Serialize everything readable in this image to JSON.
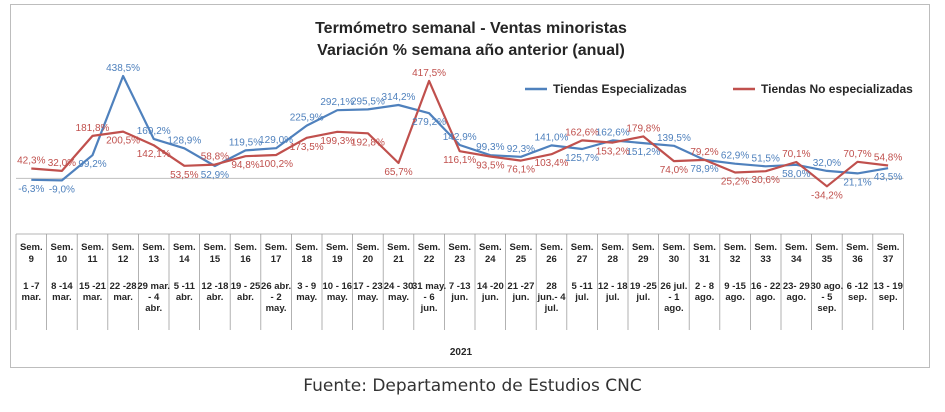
{
  "chart_data": {
    "type": "line",
    "title": "Termómetro semanal - Ventas minoristas",
    "subtitle": "Variación % semana año anterior (anual)",
    "year_label": "2021",
    "legend_position": "top-right",
    "grid": false,
    "ylim": [
      -50,
      460
    ],
    "categories": [
      {
        "week": "Sem. 9",
        "range": "1 -7 mar."
      },
      {
        "week": "Sem. 10",
        "range": "8 -14 mar."
      },
      {
        "week": "Sem. 11",
        "range": "15 -21 mar."
      },
      {
        "week": "Sem. 12",
        "range": "22 -28 mar."
      },
      {
        "week": "Sem. 13",
        "range": "29 mar. - 4 abr."
      },
      {
        "week": "Sem. 14",
        "range": "5 -11 abr."
      },
      {
        "week": "Sem. 15",
        "range": "12 -18 abr."
      },
      {
        "week": "Sem. 16",
        "range": "19 - 25 abr."
      },
      {
        "week": "Sem. 17",
        "range": "26 abr. - 2 may."
      },
      {
        "week": "Sem. 18",
        "range": "3 - 9 may."
      },
      {
        "week": "Sem. 19",
        "range": "10 - 16 may."
      },
      {
        "week": "Sem. 20",
        "range": "17 - 23 may."
      },
      {
        "week": "Sem. 21",
        "range": "24 - 30 may."
      },
      {
        "week": "Sem. 22",
        "range": "31 may. - 6 jun."
      },
      {
        "week": "Sem. 23",
        "range": "7 -13 jun."
      },
      {
        "week": "Sem. 24",
        "range": "14 -20 jun."
      },
      {
        "week": "Sem. 25",
        "range": "21 -27 jun."
      },
      {
        "week": "Sem. 26",
        "range": "28 jun.- 4 jul."
      },
      {
        "week": "Sem. 27",
        "range": "5 -11 jul."
      },
      {
        "week": "Sem. 28",
        "range": "12 - 18 jul."
      },
      {
        "week": "Sem. 29",
        "range": "19 -25 jul."
      },
      {
        "week": "Sem. 30",
        "range": "26 jul. - 1 ago."
      },
      {
        "week": "Sem. 31",
        "range": "2 - 8 ago."
      },
      {
        "week": "Sem. 32",
        "range": "9 -15 ago."
      },
      {
        "week": "Sem. 33",
        "range": "16 - 22 ago."
      },
      {
        "week": "Sem. 34",
        "range": "23- 29 ago."
      },
      {
        "week": "Sem. 35",
        "range": "30 ago. - 5 sep."
      },
      {
        "week": "Sem. 36",
        "range": "6 -12 sep."
      },
      {
        "week": "Sem. 37",
        "range": "13 - 19 sep."
      }
    ],
    "series": [
      {
        "name": "Tiendas Especializadas",
        "color": "#4f81bd",
        "values": [
          -6.3,
          -9.0,
          99.2,
          438.5,
          169.2,
          128.9,
          52.9,
          119.5,
          129.0,
          225.9,
          292.1,
          295.5,
          314.2,
          279.2,
          142.9,
          99.3,
          92.3,
          141.0,
          125.7,
          162.6,
          151.2,
          139.5,
          78.9,
          62.9,
          51.5,
          58.0,
          32.0,
          21.1,
          43.5
        ],
        "labels": [
          "-6,3%",
          "-9,0%",
          "99,2%",
          "438,5%",
          "169,2%",
          "128,9%",
          "52,9%",
          "119,5%",
          "129,0%",
          "225,9%",
          "292,1%",
          "295,5%",
          "314,2%",
          "279,2%",
          "142,9%",
          "99,3%",
          "92,3%",
          "141,0%",
          "125,7%",
          "162,6%",
          "151,2%",
          "139,5%",
          "78,9%",
          "62,9%",
          "51,5%",
          "58,0%",
          "32,0%",
          "21,1%",
          "43,5%"
        ]
      },
      {
        "name": "Tiendas No especializadas",
        "color": "#c0504d",
        "values": [
          42.3,
          32.0,
          181.8,
          200.5,
          142.1,
          53.5,
          58.8,
          94.8,
          100.2,
          173.5,
          199.3,
          192.8,
          65.7,
          417.5,
          116.1,
          93.5,
          76.1,
          103.4,
          162.6,
          153.2,
          179.8,
          74.0,
          79.2,
          25.2,
          30.6,
          70.1,
          -34.2,
          70.7,
          54.8
        ],
        "labels": [
          "42,3%",
          "32,0%",
          "181,8%",
          "200,5%",
          "142,1%",
          "53,5%",
          "58,8%",
          "94,8%",
          "100,2%",
          "173,5%",
          "199,3%",
          "192,8%",
          "65,7%",
          "417,5%",
          "116,1%",
          "93,5%",
          "76,1%",
          "103,4%",
          "162,6%",
          "153,2%",
          "179,8%",
          "74,0%",
          "79,2%",
          "25,2%",
          "30,6%",
          "70,1%",
          "-34,2%",
          "70,7%",
          "54,8%"
        ]
      }
    ]
  },
  "footer": {
    "source": "Fuente: Departamento de Estudios CNC"
  }
}
